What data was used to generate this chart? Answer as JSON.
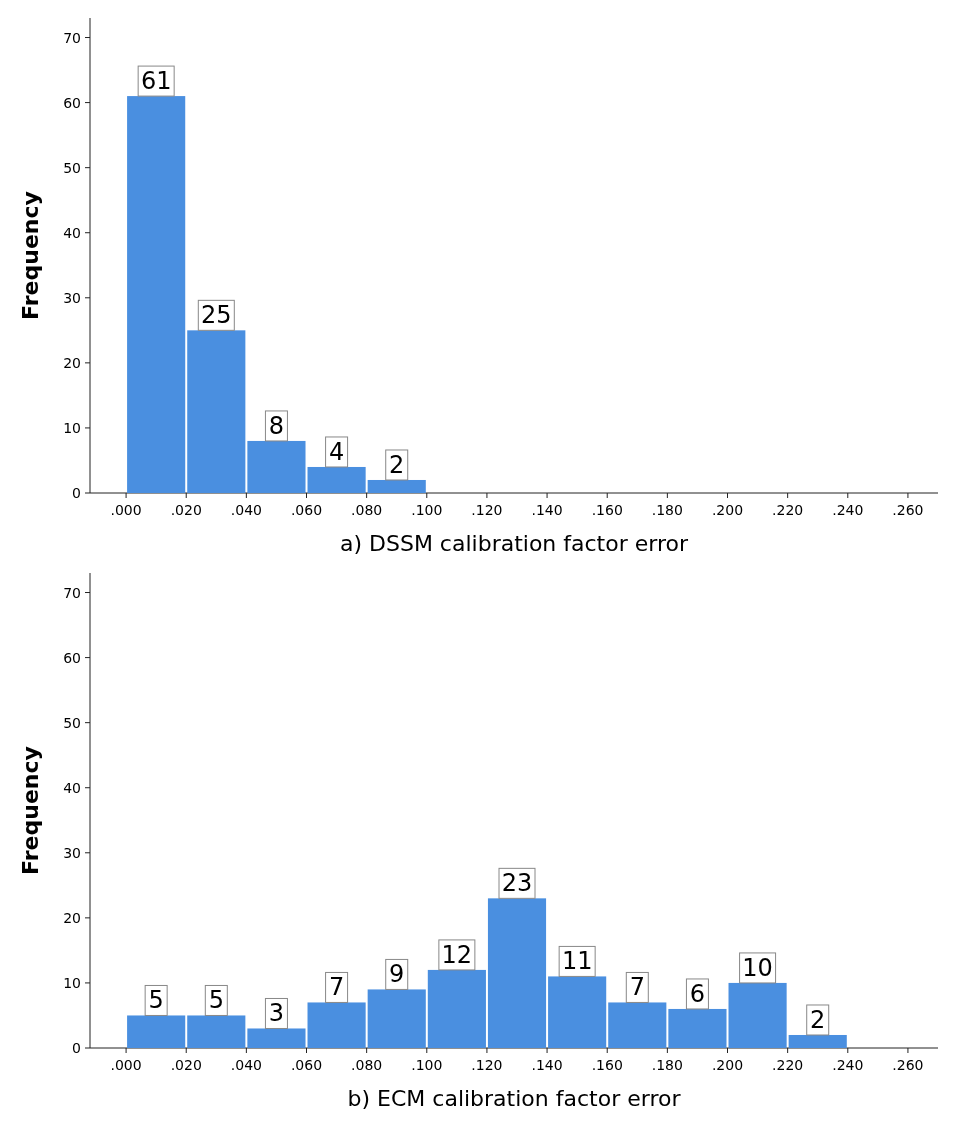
{
  "chart_data": [
    {
      "type": "histogram",
      "xlabel": "a) DSSM calibration factor error",
      "ylabel": "Frequency",
      "bins": [
        0,
        0.02,
        0.04,
        0.06,
        0.08,
        0.1
      ],
      "values": [
        61,
        25,
        8,
        4,
        2
      ],
      "color": "#4a8fe0",
      "data_labels": true,
      "xlim": [
        -0.012,
        0.27
      ],
      "ylim": [
        0,
        73
      ],
      "yticks": [
        0,
        10,
        20,
        30,
        40,
        50,
        60,
        70
      ],
      "xticks": [
        {
          "value": 0,
          "label": ".000"
        },
        {
          "value": 0.02,
          "label": ".020"
        },
        {
          "value": 0.04,
          "label": ".040"
        },
        {
          "value": 0.06,
          "label": ".060"
        },
        {
          "value": 0.08,
          "label": ".080"
        },
        {
          "value": 0.1,
          "label": ".100"
        },
        {
          "value": 0.12,
          "label": ".120"
        },
        {
          "value": 0.14,
          "label": ".140"
        },
        {
          "value": 0.16,
          "label": ".160"
        },
        {
          "value": 0.18,
          "label": ".180"
        },
        {
          "value": 0.2,
          "label": ".200"
        },
        {
          "value": 0.22,
          "label": ".220"
        },
        {
          "value": 0.24,
          "label": ".240"
        },
        {
          "value": 0.26,
          "label": ".260"
        }
      ]
    },
    {
      "type": "histogram",
      "xlabel": "b) ECM calibration factor error",
      "ylabel": "Frequency",
      "bins": [
        0,
        0.02,
        0.04,
        0.06,
        0.08,
        0.1,
        0.12,
        0.14,
        0.16,
        0.18,
        0.2,
        0.22,
        0.24
      ],
      "values": [
        5,
        5,
        3,
        7,
        9,
        12,
        23,
        11,
        7,
        6,
        10,
        2
      ],
      "color": "#4a8fe0",
      "data_labels": true,
      "xlim": [
        -0.012,
        0.27
      ],
      "ylim": [
        0,
        73
      ],
      "yticks": [
        0,
        10,
        20,
        30,
        40,
        50,
        60,
        70
      ],
      "xticks": [
        {
          "value": 0,
          "label": ".000"
        },
        {
          "value": 0.02,
          "label": ".020"
        },
        {
          "value": 0.04,
          "label": ".040"
        },
        {
          "value": 0.06,
          "label": ".060"
        },
        {
          "value": 0.08,
          "label": ".080"
        },
        {
          "value": 0.1,
          "label": ".100"
        },
        {
          "value": 0.12,
          "label": ".120"
        },
        {
          "value": 0.14,
          "label": ".140"
        },
        {
          "value": 0.16,
          "label": ".160"
        },
        {
          "value": 0.18,
          "label": ".180"
        },
        {
          "value": 0.2,
          "label": ".200"
        },
        {
          "value": 0.22,
          "label": ".220"
        },
        {
          "value": 0.24,
          "label": ".240"
        },
        {
          "value": 0.26,
          "label": ".260"
        }
      ]
    }
  ]
}
